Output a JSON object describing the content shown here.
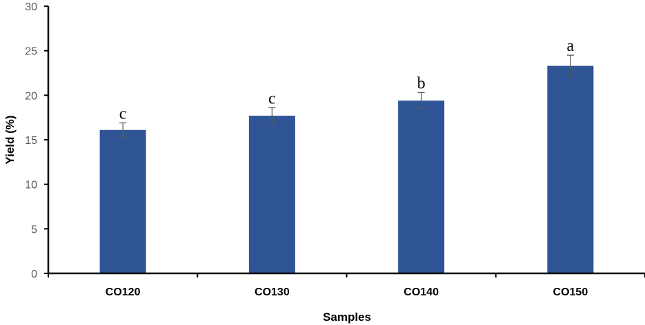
{
  "chart_data": {
    "type": "bar",
    "title": "",
    "xlabel": "Samples",
    "ylabel": "Yield (%)",
    "ylim": [
      0,
      30
    ],
    "yticks": [
      0,
      5,
      10,
      15,
      20,
      25,
      30
    ],
    "grid": false,
    "legend": "none",
    "categories": [
      "CO120",
      "CO130",
      "CO140",
      "CO150"
    ],
    "series": [
      {
        "values": [
          16.1,
          17.7,
          19.4,
          23.3
        ],
        "errors": [
          0.8,
          0.9,
          0.9,
          1.2
        ],
        "annotations": [
          "c",
          "c",
          "b",
          "a"
        ]
      }
    ],
    "colors": {
      "bar": "#2f5597",
      "error_bar": "#595959",
      "axis": "#000000"
    }
  }
}
